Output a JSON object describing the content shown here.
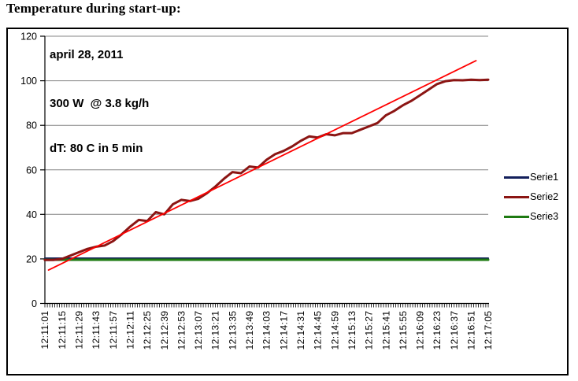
{
  "page": {
    "title": "Temperature during start-up:"
  },
  "colors": {
    "serie1": "#131f5b",
    "serie2": "#8b1513",
    "serie3": "#1e7a12",
    "trendline": "#ff0000",
    "gridline": "#848484",
    "axis": "#000000",
    "background": "#ffffff"
  },
  "chart_data": {
    "type": "line",
    "title": "Temperature during start-up:",
    "xlabel": "",
    "ylabel": "",
    "ylim": [
      0,
      120
    ],
    "y_ticks": [
      0,
      20,
      40,
      60,
      80,
      100,
      120
    ],
    "grid": "horizontal",
    "legend_position": "right",
    "annotations": [
      "april 28, 2011",
      "300 W  @ 3.8 kg/h",
      "dT: 80 C in 5 min"
    ],
    "x_label_interval_seconds": 14,
    "x_minor_tick_seconds": 2,
    "time_span_seconds": 364,
    "x_tick_labels": [
      "12:11:01",
      "12:11:15",
      "12:11:29",
      "12:11:43",
      "12:11:57",
      "12:12:11",
      "12:12:25",
      "12:12:39",
      "12:12:53",
      "12:13:07",
      "12:13:21",
      "12:13:35",
      "12:13:49",
      "12:14:03",
      "12:14:17",
      "12:14:31",
      "12:14:45",
      "12:14:59",
      "12:15:13",
      "12:15:27",
      "12:15:41",
      "12:15:55",
      "12:16:09",
      "12:16:23",
      "12:16:37",
      "12:16:51",
      "12:17:05"
    ],
    "series": [
      {
        "name": "Serie1",
        "color": "#131f5b",
        "legend": true,
        "t": [
          0,
          364
        ],
        "values": [
          20.3,
          20.3
        ]
      },
      {
        "name": "Serie2",
        "color": "#8b1513",
        "legend": true,
        "t_start": 0,
        "t_step": 7,
        "values": [
          19.5,
          19.5,
          20,
          21.5,
          23,
          24.5,
          25.5,
          26,
          28,
          31,
          34.5,
          37.5,
          37,
          41,
          40,
          44.5,
          46.5,
          46,
          47,
          49.5,
          52.5,
          56,
          59,
          58.5,
          61.5,
          61,
          64.5,
          67,
          68.5,
          70.5,
          73,
          75,
          74.5,
          76,
          75.5,
          76.5,
          76.5,
          78,
          79.5,
          81,
          84.5,
          86.5,
          89,
          91,
          93.5,
          96,
          98.5,
          99.8,
          100.3,
          100.2,
          100.5,
          100.3,
          100.5
        ]
      },
      {
        "name": "Serie3",
        "color": "#1e7a12",
        "legend": true,
        "t": [
          0,
          364
        ],
        "values": [
          19.6,
          19.6
        ]
      },
      {
        "name": "Linear trend",
        "color": "#ff0000",
        "legend": false,
        "t": [
          3,
          354
        ],
        "values": [
          15,
          109
        ]
      }
    ]
  }
}
